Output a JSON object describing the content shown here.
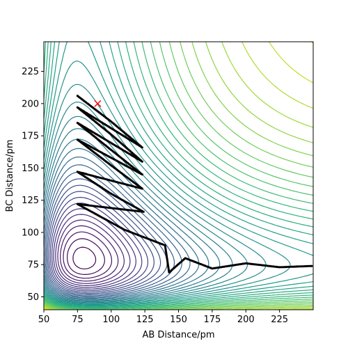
{
  "chart_data": {
    "type": "contour",
    "xlabel": "AB Distance/pm",
    "ylabel": "BC Distance/pm",
    "xlim": [
      50,
      250
    ],
    "ylim": [
      40,
      248
    ],
    "x_ticks": [
      50,
      75,
      100,
      125,
      150,
      175,
      200,
      225
    ],
    "y_ticks": [
      50,
      75,
      100,
      125,
      150,
      175,
      200,
      225
    ],
    "grid": false,
    "colormap": "viridis",
    "contour_levels": 42,
    "start_marker": {
      "x": 90,
      "y": 200,
      "symbol": "x",
      "color": "#ff0000"
    },
    "trajectory_color": "#000000",
    "trajectory_samples": [
      {
        "x": 75,
        "y": 206
      },
      {
        "x": 100,
        "y": 186
      },
      {
        "x": 123,
        "y": 166
      },
      {
        "x": 75,
        "y": 197
      },
      {
        "x": 100,
        "y": 176
      },
      {
        "x": 123,
        "y": 155
      },
      {
        "x": 75,
        "y": 185
      },
      {
        "x": 100,
        "y": 164
      },
      {
        "x": 123,
        "y": 145
      },
      {
        "x": 75,
        "y": 172
      },
      {
        "x": 100,
        "y": 152
      },
      {
        "x": 123,
        "y": 134
      },
      {
        "x": 75,
        "y": 147
      },
      {
        "x": 100,
        "y": 130
      },
      {
        "x": 124,
        "y": 116
      },
      {
        "x": 75,
        "y": 122
      },
      {
        "x": 110,
        "y": 102
      },
      {
        "x": 140,
        "y": 90
      },
      {
        "x": 143,
        "y": 69
      },
      {
        "x": 155,
        "y": 80
      },
      {
        "x": 175,
        "y": 72
      },
      {
        "x": 200,
        "y": 76
      },
      {
        "x": 225,
        "y": 73
      },
      {
        "x": 250,
        "y": 74
      }
    ]
  }
}
